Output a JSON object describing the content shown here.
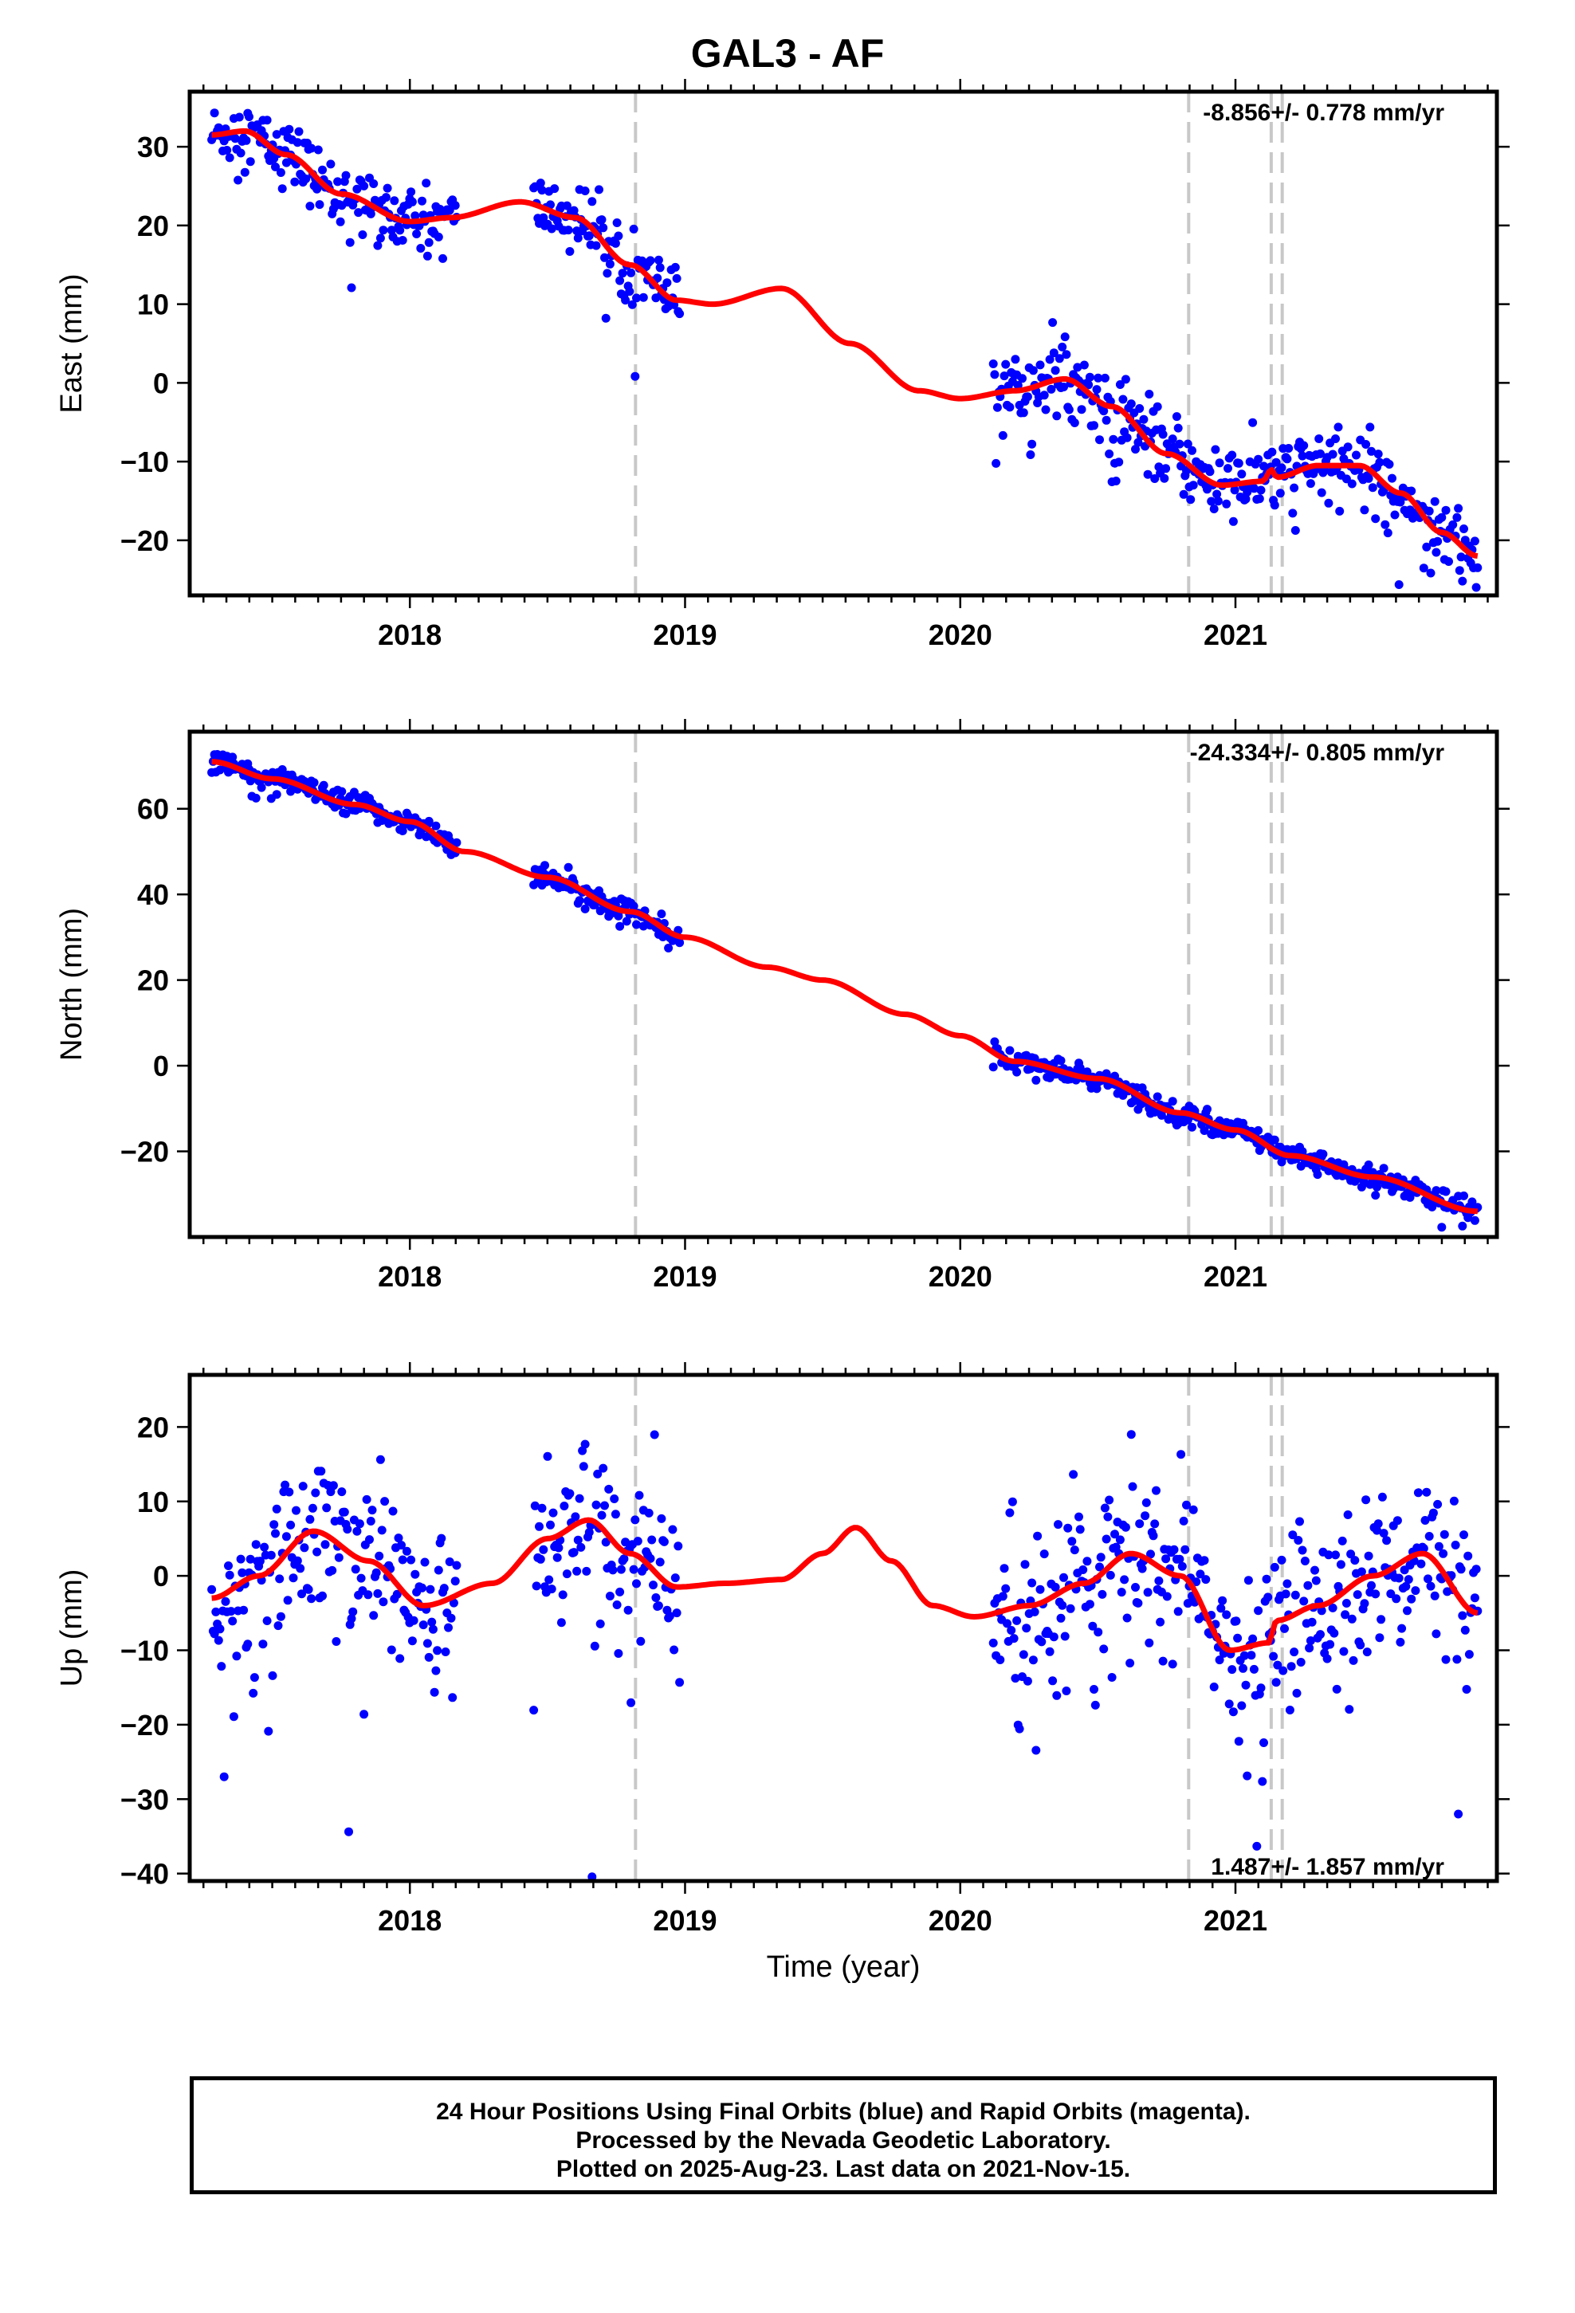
{
  "title": "GAL3 - AF",
  "x_axis_title": "Time (year)",
  "footer": {
    "line1": "24 Hour Positions Using Final Orbits (blue) and Rapid Orbits (magenta).",
    "line2": "Processed by the Nevada Geodetic Laboratory.",
    "line3": "Plotted on 2025-Aug-23. Last data on 2021-Nov-15."
  },
  "colors": {
    "data": "#0000ff",
    "model": "#ff0000",
    "offsets": "#c8c8c8",
    "frame": "#000000"
  },
  "chart_data": [
    {
      "type": "scatter",
      "ylabel": "East (mm)",
      "rate": "-8.856+/- 0.778 mm/yr",
      "rate_position": "top-right",
      "xlim": [
        2017.2,
        2021.95
      ],
      "ylim": [
        -27,
        37
      ],
      "xticks": [
        2018,
        2019,
        2020,
        2021
      ],
      "yticks": [
        -20,
        -10,
        0,
        10,
        20,
        30
      ],
      "offset_lines": [
        2018.82,
        2020.83,
        2021.13,
        2021.17
      ],
      "data_segments": [
        {
          "start": 2017.28,
          "end": 2018.17,
          "noise": 2.0
        },
        {
          "start": 2018.45,
          "end": 2018.98,
          "noise": 2.0
        },
        {
          "start": 2020.12,
          "end": 2021.88,
          "noise": 2.3
        }
      ],
      "model_knots": {
        "x": [
          2017.28,
          2017.4,
          2017.55,
          2017.75,
          2018.0,
          2018.15,
          2018.4,
          2018.6,
          2018.8,
          2018.97,
          2019.1,
          2019.35,
          2019.6,
          2019.85,
          2020.0,
          2020.2,
          2020.38,
          2020.55,
          2020.75,
          2020.95,
          2021.1,
          2021.13,
          2021.15,
          2021.3,
          2021.45,
          2021.6,
          2021.75,
          2021.88
        ],
        "y": [
          31.5,
          32,
          29,
          24,
          20.5,
          21,
          23,
          21,
          15,
          10.5,
          10,
          12,
          5,
          -1,
          -2,
          -1,
          0.5,
          -3,
          -9,
          -13,
          -12.5,
          -11,
          -12,
          -10.5,
          -10.5,
          -14,
          -19,
          -22
        ]
      }
    },
    {
      "type": "scatter",
      "ylabel": "North (mm)",
      "rate": "-24.334+/- 0.805 mm/yr",
      "rate_position": "top-right",
      "xlim": [
        2017.2,
        2021.95
      ],
      "ylim": [
        -40,
        78
      ],
      "xticks": [
        2018,
        2019,
        2020,
        2021
      ],
      "yticks": [
        -20,
        0,
        20,
        40,
        60
      ],
      "offset_lines": [
        2018.82,
        2020.83,
        2021.13,
        2021.17
      ],
      "data_segments": [
        {
          "start": 2017.28,
          "end": 2018.17,
          "noise": 1.3
        },
        {
          "start": 2018.45,
          "end": 2018.98,
          "noise": 1.3
        },
        {
          "start": 2020.12,
          "end": 2021.88,
          "noise": 1.3
        }
      ],
      "model_knots": {
        "x": [
          2017.28,
          2017.5,
          2017.8,
          2018.0,
          2018.2,
          2018.5,
          2018.8,
          2019.0,
          2019.3,
          2019.5,
          2019.8,
          2020.0,
          2020.2,
          2020.5,
          2020.8,
          2021.0,
          2021.2,
          2021.5,
          2021.88
        ],
        "y": [
          71,
          67,
          61,
          57,
          50,
          44,
          36,
          30,
          23,
          20,
          12,
          7,
          1,
          -3,
          -11,
          -15,
          -21,
          -26,
          -34
        ]
      }
    },
    {
      "type": "scatter",
      "ylabel": "Up (mm)",
      "rate": "1.487+/- 1.857 mm/yr",
      "rate_position": "bottom-right",
      "xlim": [
        2017.2,
        2021.95
      ],
      "ylim": [
        -41,
        27
      ],
      "xticks": [
        2018,
        2019,
        2020,
        2021
      ],
      "yticks": [
        -40,
        -30,
        -20,
        -10,
        0,
        10,
        20
      ],
      "offset_lines": [
        2018.82,
        2020.83,
        2021.13,
        2021.17
      ],
      "data_segments": [
        {
          "start": 2017.28,
          "end": 2018.17,
          "noise": 5.5
        },
        {
          "start": 2018.45,
          "end": 2018.98,
          "noise": 5.5
        },
        {
          "start": 2020.12,
          "end": 2021.88,
          "noise": 5.5
        }
      ],
      "model_knots": {
        "x": [
          2017.28,
          2017.45,
          2017.65,
          2017.85,
          2018.05,
          2018.3,
          2018.5,
          2018.65,
          2018.8,
          2018.97,
          2019.15,
          2019.35,
          2019.5,
          2019.62,
          2019.75,
          2019.9,
          2020.05,
          2020.25,
          2020.45,
          2020.62,
          2020.8,
          2020.98,
          2021.12,
          2021.15,
          2021.3,
          2021.5,
          2021.68,
          2021.88
        ],
        "y": [
          -3,
          0,
          6,
          2,
          -4,
          -1,
          5,
          7.5,
          3,
          -1.5,
          -1,
          -0.5,
          3,
          6.5,
          2,
          -4,
          -5.5,
          -4,
          -1,
          3,
          0,
          -10,
          -9,
          -6,
          -4,
          0,
          3,
          -5
        ]
      }
    }
  ]
}
